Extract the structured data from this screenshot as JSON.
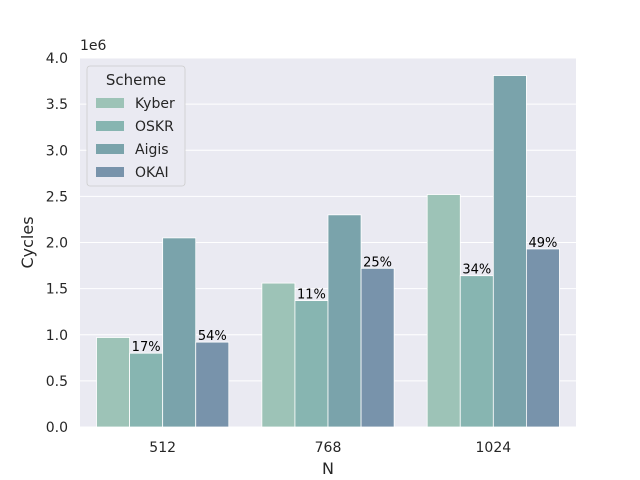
{
  "chart_data": {
    "type": "bar",
    "xlabel": "N",
    "ylabel": "Cycles",
    "y_scale_note": "1e6",
    "categories": [
      "512",
      "768",
      "1024"
    ],
    "ylim": [
      0,
      4000000
    ],
    "yticks": [
      "0.0",
      "0.5",
      "1.0",
      "1.5",
      "2.0",
      "2.5",
      "3.0",
      "3.5",
      "4.0"
    ],
    "legend_title": "Scheme",
    "legend_position": "upper-left",
    "grid": true,
    "series": [
      {
        "name": "Kyber",
        "color": "#9dc3b7",
        "values": [
          970000,
          1560000,
          2520000
        ]
      },
      {
        "name": "OSKR",
        "color": "#87b5b1",
        "values": [
          800000,
          1370000,
          1640000
        ]
      },
      {
        "name": "Aigis",
        "color": "#7aa3ab",
        "values": [
          2050000,
          2300000,
          3810000
        ]
      },
      {
        "name": "OKAI",
        "color": "#7893ab",
        "values": [
          920000,
          1720000,
          1930000
        ]
      }
    ],
    "annotations": [
      {
        "series": "OSKR",
        "category": "512",
        "text": "17%"
      },
      {
        "series": "OKAI",
        "category": "512",
        "text": "54%"
      },
      {
        "series": "OSKR",
        "category": "768",
        "text": "11%"
      },
      {
        "series": "OKAI",
        "category": "768",
        "text": "25%"
      },
      {
        "series": "OSKR",
        "category": "1024",
        "text": "34%"
      },
      {
        "series": "OKAI",
        "category": "1024",
        "text": "49%"
      }
    ]
  }
}
